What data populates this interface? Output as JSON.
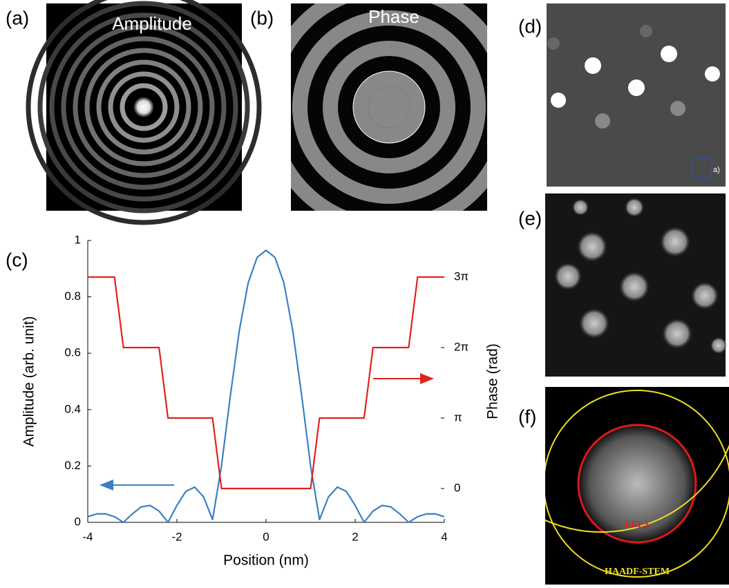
{
  "panels": [
    {
      "label": "(a)",
      "title": "Amplitude"
    },
    {
      "label": "(b)",
      "title": "Phase"
    },
    {
      "label": "(c)"
    },
    {
      "label": "(d)",
      "inset_label": "a)"
    },
    {
      "label": "(e)"
    },
    {
      "label": "(f)",
      "inner_label": "EELS",
      "outer_label": "HAADF-STEM"
    }
  ],
  "chart_data": {
    "type": "line",
    "xlabel": "Position (nm)",
    "ylabel": "Amplitude (arb. unit)",
    "y2label": "Phase (rad)",
    "x": [
      -4.0,
      -3.8,
      -3.6,
      -3.4,
      -3.2,
      -3.0,
      -2.8,
      -2.6,
      -2.4,
      -2.2,
      -2.0,
      -1.8,
      -1.6,
      -1.4,
      -1.2,
      -1.0,
      -0.8,
      -0.6,
      -0.4,
      -0.2,
      0,
      0.2,
      0.4,
      0.6,
      0.8,
      1.0,
      1.2,
      1.4,
      1.6,
      1.8,
      2.0,
      2.2,
      2.4,
      2.6,
      2.8,
      3.0,
      3.2,
      3.4,
      3.6,
      3.8,
      4.0
    ],
    "series": [
      {
        "color": "#3b7fc4",
        "values": [
          0.02,
          0.03,
          0.03,
          0.02,
          0.0,
          0.03,
          0.055,
          0.06,
          0.04,
          0.0,
          0.06,
          0.11,
          0.125,
          0.09,
          0.01,
          0.2,
          0.45,
          0.68,
          0.85,
          0.94,
          0.965,
          0.94,
          0.85,
          0.68,
          0.45,
          0.2,
          0.01,
          0.09,
          0.125,
          0.11,
          0.06,
          0.0,
          0.04,
          0.06,
          0.055,
          0.03,
          0.0,
          0.02,
          0.03,
          0.03,
          0.02
        ]
      },
      {
        "color": "#e3211c",
        "axis": "y2",
        "values": [
          9.4248,
          9.4248,
          9.4248,
          9.4248,
          6.2832,
          6.2832,
          6.2832,
          6.2832,
          6.2832,
          3.1416,
          3.1416,
          3.1416,
          3.1416,
          3.1416,
          3.1416,
          0,
          0,
          0,
          0,
          0,
          0,
          0,
          0,
          0,
          0,
          0,
          3.1416,
          3.1416,
          3.1416,
          3.1416,
          3.1416,
          3.1416,
          6.2832,
          6.2832,
          6.2832,
          6.2832,
          6.2832,
          9.4248,
          9.4248,
          9.4248,
          9.4248
        ]
      }
    ],
    "xlim": [
      -4,
      4
    ],
    "xticks": [
      -4,
      -2,
      0,
      2,
      4
    ],
    "ylim": [
      0,
      1
    ],
    "yticks": [
      0,
      0.2,
      0.4,
      0.6,
      0.8,
      1
    ],
    "y2lim": [
      -1.508,
      11.058
    ],
    "y2ticks": [
      0,
      {
        "value": 3.1416,
        "label": "π"
      },
      {
        "value": 6.2832,
        "label": "2π"
      },
      {
        "value": 9.4248,
        "label": "3π"
      }
    ]
  }
}
